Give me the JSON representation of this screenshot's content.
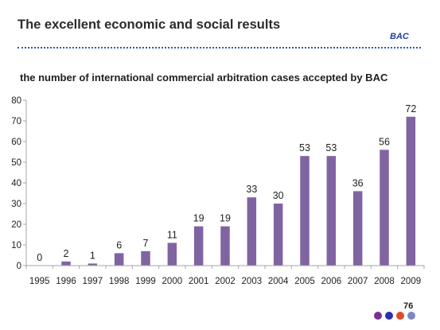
{
  "slide": {
    "title": "The excellent economic and social results",
    "brand": "BAC",
    "page_number": "76"
  },
  "colors": {
    "bar": "#8064a2",
    "brand": "#1f3f9e",
    "rule": "#2d56b8",
    "axis": "#a6a6a6",
    "text": "#1f1f1f",
    "nav_dots": [
      "#7b2f91",
      "#2a2fb5",
      "#e04a2a",
      "#7a88c8"
    ]
  },
  "chart_data": {
    "type": "bar",
    "title": "the number of international commercial arbitration cases accepted by BAC",
    "categories": [
      "1995",
      "1996",
      "1997",
      "1998",
      "1999",
      "2000",
      "2001",
      "2002",
      "2003",
      "2004",
      "2005",
      "2006",
      "2007",
      "2008",
      "2009"
    ],
    "values": [
      0,
      2,
      1,
      6,
      7,
      11,
      19,
      19,
      33,
      30,
      53,
      53,
      36,
      56,
      72
    ],
    "ylim": [
      0,
      80
    ],
    "yticks": [
      "0",
      "10",
      "20",
      "30",
      "40",
      "50",
      "60",
      "70",
      "80"
    ],
    "xlabel": "",
    "ylabel": "",
    "grid": false,
    "data_labels": true,
    "legend": false
  }
}
